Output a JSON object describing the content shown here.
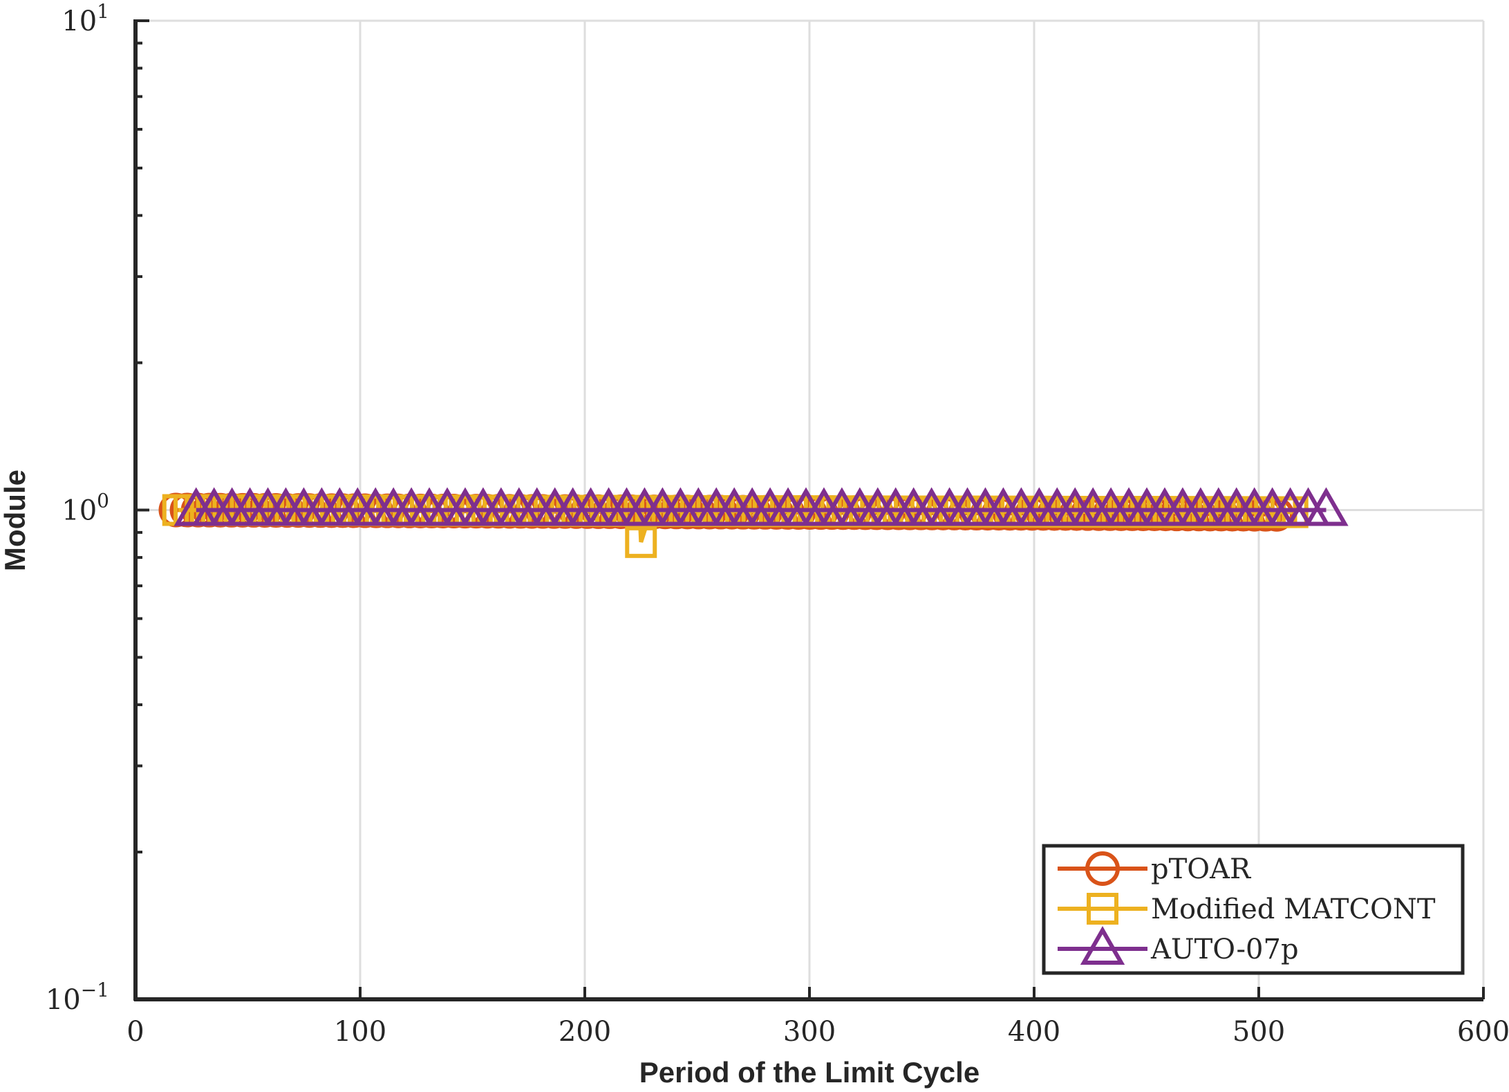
{
  "chart_data": {
    "type": "line",
    "title": "",
    "xlabel": "Period of the Limit Cycle",
    "ylabel": "Module",
    "xlim": [
      0,
      600
    ],
    "ylim": [
      0.1,
      10
    ],
    "yscale": "log",
    "grid": true,
    "legend_position": "bottom-right",
    "x_ticks": [
      {
        "value": 0,
        "label": "0"
      },
      {
        "value": 100,
        "label": "100"
      },
      {
        "value": 200,
        "label": "200"
      },
      {
        "value": 300,
        "label": "300"
      },
      {
        "value": 400,
        "label": "400"
      },
      {
        "value": 500,
        "label": "500"
      },
      {
        "value": 600,
        "label": "600"
      }
    ],
    "y_ticks": [
      {
        "value": 0.1,
        "base": "10",
        "exp": "−1"
      },
      {
        "value": 1,
        "base": "10",
        "exp": "0"
      },
      {
        "value": 10,
        "base": "10",
        "exp": "1"
      }
    ],
    "series": [
      {
        "name": "pTOAR",
        "color": "#D95319",
        "marker": "circle",
        "x_start": 18,
        "x_end": 508,
        "count": 100,
        "y_start": 1.0,
        "y_end": 0.98,
        "outliers": []
      },
      {
        "name": "Modified MATCONT",
        "color": "#EDB120",
        "marker": "square",
        "x_start": 19,
        "x_end": 515,
        "count": 100,
        "y_start": 1.0,
        "y_end": 0.99,
        "outliers": [
          {
            "x": 225,
            "y": 0.86
          }
        ]
      },
      {
        "name": "AUTO-07p",
        "color": "#7E2F8E",
        "marker": "triangle",
        "x_start": 27,
        "x_end": 530,
        "count": 64,
        "y_start": 1.0,
        "y_end": 1.0,
        "outliers": []
      }
    ]
  }
}
